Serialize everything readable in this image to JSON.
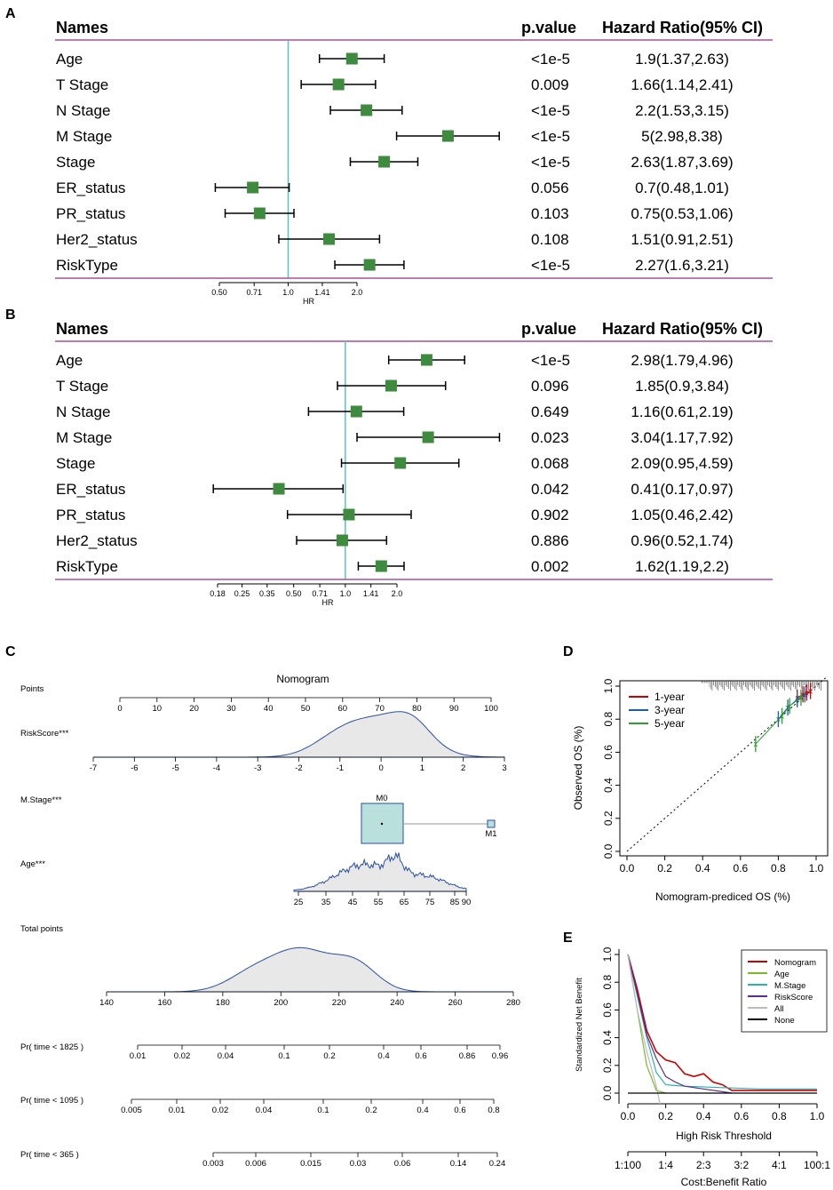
{
  "panels": {
    "A": "A",
    "B": "B",
    "C": "C",
    "D": "D",
    "E": "E"
  },
  "forest_headers": {
    "names": "Names",
    "pvalue": "p.value",
    "hr": "Hazard Ratio(95% CI)",
    "axis_label": "HR"
  },
  "chart_data": [
    {
      "type": "forest",
      "panel": "A",
      "xaxis": {
        "label": "HR",
        "scale": "log",
        "ticks": [
          0.5,
          0.71,
          1.0,
          1.41,
          2.0
        ],
        "tick_labels": [
          "0.50",
          "0.71",
          "1.0",
          "1.41",
          "2.0"
        ]
      },
      "reference_line": 1.0,
      "rows": [
        {
          "name": "Age",
          "p": "<1e-5",
          "hr_text": "1.9(1.37,2.63)",
          "hr": 1.9,
          "lo": 1.37,
          "hi": 2.63
        },
        {
          "name": "T Stage",
          "p": "0.009",
          "hr_text": "1.66(1.14,2.41)",
          "hr": 1.66,
          "lo": 1.14,
          "hi": 2.41
        },
        {
          "name": "N Stage",
          "p": "<1e-5",
          "hr_text": "2.2(1.53,3.15)",
          "hr": 2.2,
          "lo": 1.53,
          "hi": 3.15
        },
        {
          "name": "M Stage",
          "p": "<1e-5",
          "hr_text": "5(2.98,8.38)",
          "hr": 5,
          "lo": 2.98,
          "hi": 8.38
        },
        {
          "name": "Stage",
          "p": "<1e-5",
          "hr_text": "2.63(1.87,3.69)",
          "hr": 2.63,
          "lo": 1.87,
          "hi": 3.69
        },
        {
          "name": "ER_status",
          "p": "0.056",
          "hr_text": "0.7(0.48,1.01)",
          "hr": 0.7,
          "lo": 0.48,
          "hi": 1.01
        },
        {
          "name": "PR_status",
          "p": "0.103",
          "hr_text": "0.75(0.53,1.06)",
          "hr": 0.75,
          "lo": 0.53,
          "hi": 1.06
        },
        {
          "name": "Her2_status",
          "p": "0.108",
          "hr_text": "1.51(0.91,2.51)",
          "hr": 1.51,
          "lo": 0.91,
          "hi": 2.51
        },
        {
          "name": "RiskType",
          "p": "<1e-5",
          "hr_text": "2.27(1.6,3.21)",
          "hr": 2.27,
          "lo": 1.6,
          "hi": 3.21
        }
      ]
    },
    {
      "type": "forest",
      "panel": "B",
      "xaxis": {
        "label": "HR",
        "scale": "log",
        "ticks": [
          0.18,
          0.25,
          0.35,
          0.5,
          0.71,
          1.0,
          1.41,
          2.0
        ],
        "tick_labels": [
          "0.18",
          "0.25",
          "0.35",
          "0.50",
          "0.71",
          "1.0",
          "1.41",
          "2.0"
        ]
      },
      "reference_line": 1.0,
      "rows": [
        {
          "name": "Age",
          "p": "<1e-5",
          "hr_text": "2.98(1.79,4.96)",
          "hr": 2.98,
          "lo": 1.79,
          "hi": 4.96
        },
        {
          "name": "T Stage",
          "p": "0.096",
          "hr_text": "1.85(0.9,3.84)",
          "hr": 1.85,
          "lo": 0.9,
          "hi": 3.84
        },
        {
          "name": "N Stage",
          "p": "0.649",
          "hr_text": "1.16(0.61,2.19)",
          "hr": 1.16,
          "lo": 0.61,
          "hi": 2.19
        },
        {
          "name": "M Stage",
          "p": "0.023",
          "hr_text": "3.04(1.17,7.92)",
          "hr": 3.04,
          "lo": 1.17,
          "hi": 7.92
        },
        {
          "name": "Stage",
          "p": "0.068",
          "hr_text": "2.09(0.95,4.59)",
          "hr": 2.09,
          "lo": 0.95,
          "hi": 4.59
        },
        {
          "name": "ER_status",
          "p": "0.042",
          "hr_text": "0.41(0.17,0.97)",
          "hr": 0.41,
          "lo": 0.17,
          "hi": 0.97
        },
        {
          "name": "PR_status",
          "p": "0.902",
          "hr_text": "1.05(0.46,2.42)",
          "hr": 1.05,
          "lo": 0.46,
          "hi": 2.42
        },
        {
          "name": "Her2_status",
          "p": "0.886",
          "hr_text": "0.96(0.52,1.74)",
          "hr": 0.96,
          "lo": 0.52,
          "hi": 1.74
        },
        {
          "name": "RiskType",
          "p": "0.002",
          "hr_text": "1.62(1.19,2.2)",
          "hr": 1.62,
          "lo": 1.19,
          "hi": 2.2
        }
      ]
    },
    {
      "type": "nomogram",
      "panel": "C",
      "title": "Nomogram",
      "rows": [
        {
          "label": "Points",
          "ticks": [
            "0",
            "10",
            "20",
            "30",
            "40",
            "50",
            "60",
            "70",
            "80",
            "90",
            "100"
          ]
        },
        {
          "label": "RiskScore***",
          "ticks": [
            "-7",
            "-6",
            "-5",
            "-4",
            "-3",
            "-2",
            "-1",
            "0",
            "1",
            "2",
            "3"
          ],
          "density": true
        },
        {
          "label": "M.Stage***",
          "levels": [
            "M0",
            "M1"
          ]
        },
        {
          "label": "Age***",
          "ticks": [
            "25",
            "35",
            "45",
            "55",
            "65",
            "75",
            "85",
            "90"
          ],
          "density": true
        },
        {
          "label": "Total points",
          "ticks": [
            "140",
            "160",
            "180",
            "200",
            "220",
            "240",
            "260",
            "280"
          ],
          "density": true
        },
        {
          "label": "Pr( time < 1825 )",
          "ticks": [
            "0.01",
            "0.02",
            "0.04",
            "0.1",
            "0.2",
            "0.4",
            "0.6",
            "0.86",
            "0.96"
          ]
        },
        {
          "label": "Pr( time < 1095 )",
          "ticks": [
            "0.005",
            "0.01",
            "0.02",
            "0.04",
            "0.1",
            "0.2",
            "0.4",
            "0.6",
            "0.8"
          ]
        },
        {
          "label": "Pr( time < 365 )",
          "ticks": [
            "0.003",
            "0.006",
            "0.015",
            "0.03",
            "0.06",
            "0.14",
            "0.24"
          ]
        }
      ]
    },
    {
      "type": "line",
      "panel": "D",
      "title": "",
      "xlabel": "Nomogram-prediced OS (%)",
      "ylabel": "Observed OS (%)",
      "xlim": [
        0,
        1
      ],
      "ylim": [
        0,
        1
      ],
      "xticks": [
        "0.0",
        "0.2",
        "0.4",
        "0.6",
        "0.8",
        "1.0"
      ],
      "yticks": [
        "0.0",
        "0.2",
        "0.4",
        "0.6",
        "0.8",
        "1.0"
      ],
      "legend_position": "top-left",
      "series": [
        {
          "name": "1-year",
          "color": "#cc0000",
          "x": [
            0.9,
            0.93,
            0.95,
            0.97
          ],
          "y": [
            0.93,
            0.95,
            0.96,
            0.97
          ]
        },
        {
          "name": "3-year",
          "color": "#1f5fa8",
          "x": [
            0.8,
            0.85,
            0.9,
            0.94
          ],
          "y": [
            0.8,
            0.87,
            0.92,
            0.95
          ]
        },
        {
          "name": "5-year",
          "color": "#2ca02c",
          "x": [
            0.68,
            0.82,
            0.86,
            0.92
          ],
          "y": [
            0.65,
            0.82,
            0.88,
            0.93
          ]
        }
      ]
    },
    {
      "type": "line",
      "panel": "E",
      "xlabel": "High Risk Threshold",
      "ylabel": "Standardized Net Benefit",
      "xlabel2": "Cost:Benefit Ratio",
      "xlim": [
        0,
        1
      ],
      "ylim": [
        0,
        1
      ],
      "xticks": [
        "0.0",
        "0.2",
        "0.4",
        "0.6",
        "0.8",
        "1.0"
      ],
      "yticks": [
        "0.0",
        "0.2",
        "0.4",
        "0.6",
        "0.8",
        "1.0"
      ],
      "xticks2": [
        "1:100",
        "1:4",
        "2:3",
        "3:2",
        "4:1",
        "100:1"
      ],
      "legend_position": "top-right",
      "series": [
        {
          "name": "Nomogram",
          "color": "#cc0000",
          "x": [
            0,
            0.05,
            0.1,
            0.15,
            0.2,
            0.25,
            0.3,
            0.35,
            0.4,
            0.45,
            0.5,
            0.55,
            0.7,
            1.0
          ],
          "y": [
            1.0,
            0.75,
            0.45,
            0.3,
            0.24,
            0.22,
            0.14,
            0.12,
            0.14,
            0.08,
            0.06,
            0.02,
            0.02,
            0.02
          ]
        },
        {
          "name": "Age",
          "color": "#7ab929",
          "x": [
            0,
            0.05,
            0.1,
            0.15,
            0.2
          ],
          "y": [
            1.0,
            0.6,
            0.2,
            0.02,
            0.0
          ]
        },
        {
          "name": "M.Stage",
          "color": "#2bb0b0",
          "x": [
            0,
            0.05,
            0.1,
            0.15,
            0.2,
            0.3,
            0.5,
            0.7,
            1.0
          ],
          "y": [
            1.0,
            0.7,
            0.4,
            0.15,
            0.06,
            0.05,
            0.04,
            0.03,
            0.03
          ]
        },
        {
          "name": "RiskScore",
          "color": "#5b2d90",
          "x": [
            0,
            0.05,
            0.1,
            0.15,
            0.2,
            0.25,
            0.3,
            0.4,
            0.5,
            0.55
          ],
          "y": [
            1.0,
            0.72,
            0.42,
            0.25,
            0.12,
            0.08,
            0.05,
            0.03,
            0.01,
            0.0
          ]
        },
        {
          "name": "All",
          "color": "#bbbbbb",
          "x": [
            0,
            0.05,
            0.1,
            0.15,
            0.17
          ],
          "y": [
            1.0,
            0.6,
            0.3,
            0.05,
            -0.1
          ]
        },
        {
          "name": "None",
          "color": "#000000",
          "x": [
            0,
            1.0
          ],
          "y": [
            0,
            0
          ]
        }
      ]
    }
  ]
}
